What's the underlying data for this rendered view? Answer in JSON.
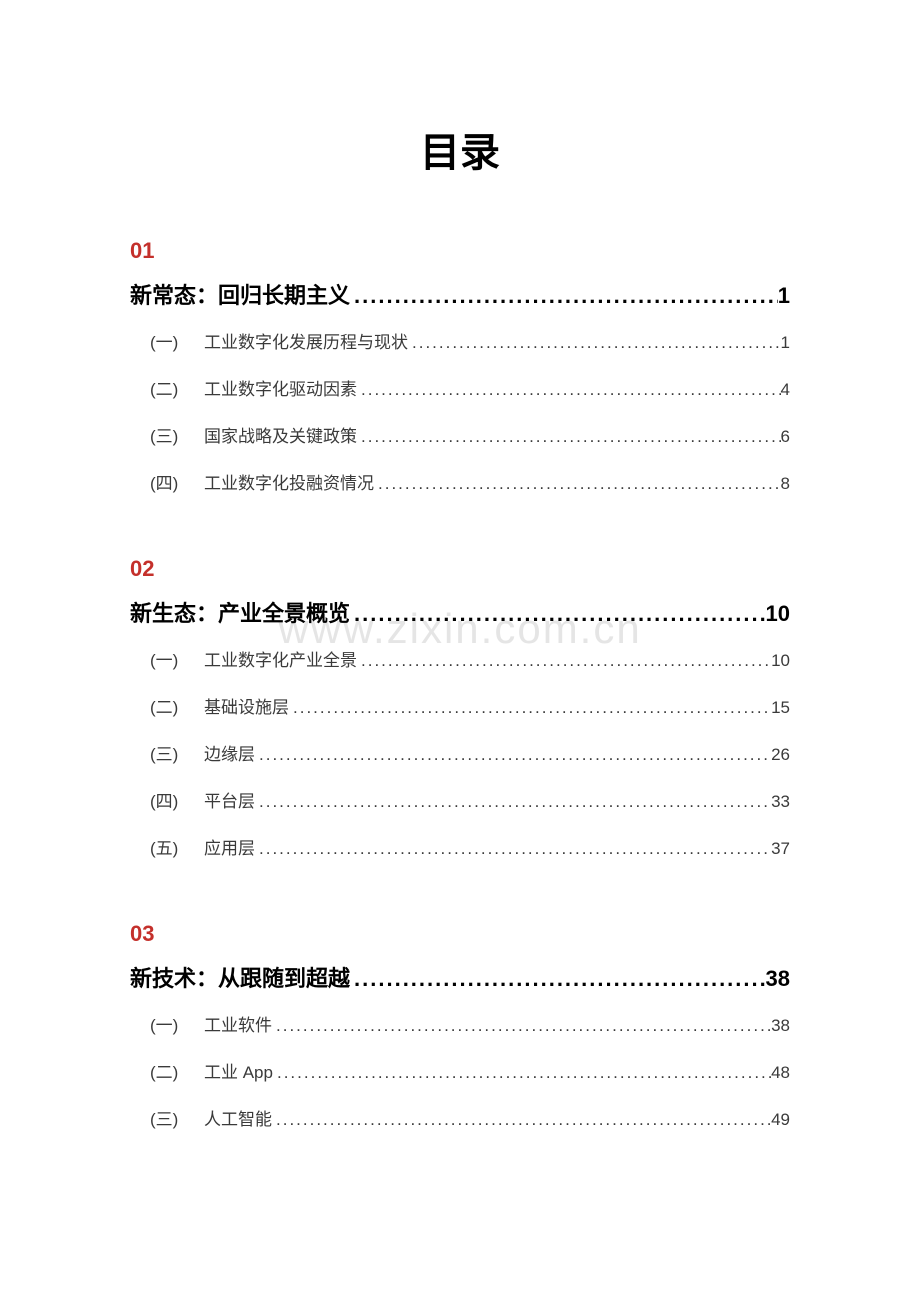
{
  "title": "目录",
  "watermark": "www.zixin.com.cn",
  "colors": {
    "accent": "#c4302b",
    "text_primary": "#000000",
    "text_secondary": "#3a3a3a",
    "background": "#ffffff"
  },
  "typography": {
    "title_size": 40,
    "section_number_size": 22,
    "section_title_size": 22,
    "sub_item_size": 17
  },
  "sections": [
    {
      "number": "01",
      "title": "新常态：回归长期主义",
      "page": "1",
      "items": [
        {
          "num": "(一)",
          "label": "工业数字化发展历程与现状",
          "page": "1"
        },
        {
          "num": "(二)",
          "label": "工业数字化驱动因素",
          "page": "4"
        },
        {
          "num": "(三)",
          "label": "国家战略及关键政策",
          "page": "6"
        },
        {
          "num": "(四)",
          "label": "工业数字化投融资情况",
          "page": "8"
        }
      ]
    },
    {
      "number": "02",
      "title": "新生态：产业全景概览",
      "page": "10",
      "items": [
        {
          "num": "(一)",
          "label": "工业数字化产业全景",
          "page": "10"
        },
        {
          "num": "(二)",
          "label": "基础设施层",
          "page": "15"
        },
        {
          "num": "(三)",
          "label": "边缘层",
          "page": "26"
        },
        {
          "num": "(四)",
          "label": "平台层",
          "page": "33"
        },
        {
          "num": "(五)",
          "label": "应用层",
          "page": "37"
        }
      ]
    },
    {
      "number": "03",
      "title": "新技术：从跟随到超越",
      "page": "38",
      "items": [
        {
          "num": "(一)",
          "label": "工业软件",
          "page": "38"
        },
        {
          "num": "(二)",
          "label": "工业 App",
          "page": "48"
        },
        {
          "num": "(三)",
          "label": "人工智能",
          "page": "49"
        }
      ]
    }
  ]
}
